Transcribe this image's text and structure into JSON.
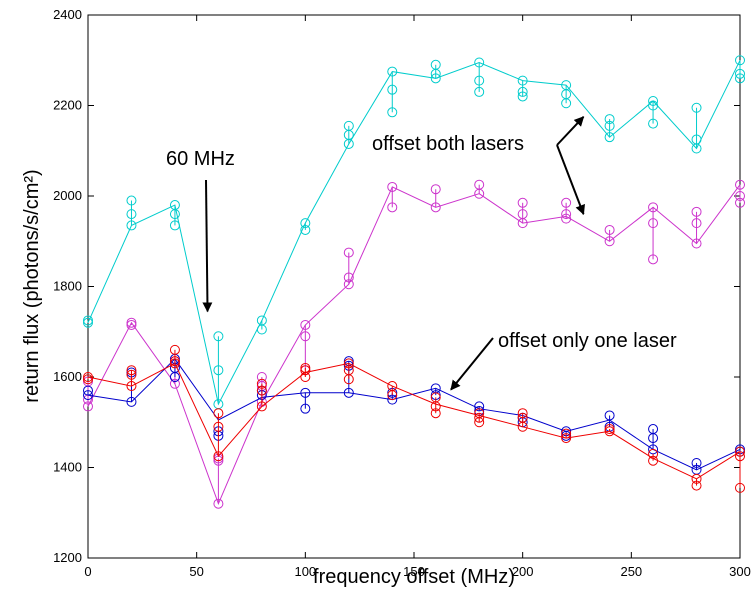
{
  "chart_data": {
    "type": "scatter",
    "title": "",
    "xlabel": "frequency offset (MHz)",
    "ylabel": "return flux (photons/s/cm²)",
    "xlim": [
      0,
      300
    ],
    "ylim": [
      1200,
      2400
    ],
    "xticks": [
      0,
      50,
      100,
      150,
      200,
      250,
      300
    ],
    "yticks": [
      1200,
      1400,
      1600,
      1800,
      2000,
      2200,
      2400
    ],
    "grid": false,
    "legend": "none",
    "series": [
      {
        "color": "#00cccc",
        "marker": "circle",
        "points": [
          [
            0,
            1725
          ],
          [
            0,
            1720
          ],
          [
            20,
            1990
          ],
          [
            20,
            1960
          ],
          [
            20,
            1935
          ],
          [
            40,
            1980
          ],
          [
            40,
            1960
          ],
          [
            40,
            1935
          ],
          [
            60,
            1690
          ],
          [
            60,
            1615
          ],
          [
            60,
            1540
          ],
          [
            80,
            1725
          ],
          [
            80,
            1705
          ],
          [
            100,
            1940
          ],
          [
            100,
            1925
          ],
          [
            120,
            2155
          ],
          [
            120,
            2135
          ],
          [
            120,
            2115
          ],
          [
            140,
            2275
          ],
          [
            140,
            2235
          ],
          [
            140,
            2185
          ],
          [
            160,
            2290
          ],
          [
            160,
            2270
          ],
          [
            160,
            2260
          ],
          [
            180,
            2295
          ],
          [
            180,
            2255
          ],
          [
            180,
            2230
          ],
          [
            200,
            2255
          ],
          [
            200,
            2230
          ],
          [
            200,
            2220
          ],
          [
            220,
            2245
          ],
          [
            220,
            2225
          ],
          [
            220,
            2205
          ],
          [
            240,
            2170
          ],
          [
            240,
            2155
          ],
          [
            240,
            2130
          ],
          [
            260,
            2210
          ],
          [
            260,
            2200
          ],
          [
            260,
            2160
          ],
          [
            280,
            2195
          ],
          [
            280,
            2125
          ],
          [
            280,
            2105
          ],
          [
            300,
            2300
          ],
          [
            300,
            2270
          ],
          [
            300,
            2260
          ]
        ],
        "line": [
          [
            0,
            1720
          ],
          [
            20,
            1935
          ],
          [
            40,
            1980
          ],
          [
            60,
            1540
          ],
          [
            80,
            1725
          ],
          [
            100,
            1940
          ],
          [
            120,
            2115
          ],
          [
            140,
            2275
          ],
          [
            160,
            2260
          ],
          [
            180,
            2295
          ],
          [
            200,
            2255
          ],
          [
            220,
            2245
          ],
          [
            240,
            2130
          ],
          [
            260,
            2210
          ],
          [
            280,
            2105
          ],
          [
            300,
            2300
          ]
        ]
      },
      {
        "color": "#cc33cc",
        "marker": "circle",
        "points": [
          [
            0,
            1590
          ],
          [
            0,
            1550
          ],
          [
            0,
            1535
          ],
          [
            20,
            1720
          ],
          [
            20,
            1715
          ],
          [
            40,
            1635
          ],
          [
            40,
            1600
          ],
          [
            40,
            1585
          ],
          [
            60,
            1420
          ],
          [
            60,
            1415
          ],
          [
            60,
            1320
          ],
          [
            80,
            1600
          ],
          [
            80,
            1580
          ],
          [
            80,
            1545
          ],
          [
            100,
            1715
          ],
          [
            100,
            1690
          ],
          [
            100,
            1615
          ],
          [
            120,
            1875
          ],
          [
            120,
            1820
          ],
          [
            120,
            1805
          ],
          [
            140,
            2020
          ],
          [
            140,
            1975
          ],
          [
            160,
            2015
          ],
          [
            160,
            1975
          ],
          [
            180,
            2025
          ],
          [
            180,
            2005
          ],
          [
            200,
            1985
          ],
          [
            200,
            1960
          ],
          [
            200,
            1940
          ],
          [
            220,
            1985
          ],
          [
            220,
            1960
          ],
          [
            220,
            1950
          ],
          [
            240,
            1925
          ],
          [
            240,
            1900
          ],
          [
            260,
            1975
          ],
          [
            260,
            1940
          ],
          [
            260,
            1860
          ],
          [
            280,
            1965
          ],
          [
            280,
            1940
          ],
          [
            280,
            1895
          ],
          [
            300,
            2025
          ],
          [
            300,
            2000
          ],
          [
            300,
            1985
          ]
        ],
        "line": [
          [
            0,
            1535
          ],
          [
            20,
            1720
          ],
          [
            40,
            1585
          ],
          [
            60,
            1320
          ],
          [
            80,
            1545
          ],
          [
            100,
            1715
          ],
          [
            120,
            1805
          ],
          [
            140,
            2020
          ],
          [
            160,
            1975
          ],
          [
            180,
            2005
          ],
          [
            200,
            1940
          ],
          [
            220,
            1955
          ],
          [
            240,
            1900
          ],
          [
            260,
            1975
          ],
          [
            280,
            1895
          ],
          [
            300,
            2025
          ]
        ]
      },
      {
        "color": "#0000cc",
        "marker": "circle",
        "points": [
          [
            0,
            1570
          ],
          [
            0,
            1560
          ],
          [
            20,
            1610
          ],
          [
            20,
            1545
          ],
          [
            40,
            1640
          ],
          [
            40,
            1620
          ],
          [
            40,
            1600
          ],
          [
            60,
            1480
          ],
          [
            60,
            1470
          ],
          [
            80,
            1570
          ],
          [
            80,
            1560
          ],
          [
            100,
            1565
          ],
          [
            100,
            1530
          ],
          [
            120,
            1635
          ],
          [
            120,
            1625
          ],
          [
            120,
            1565
          ],
          [
            140,
            1565
          ],
          [
            140,
            1550
          ],
          [
            160,
            1575
          ],
          [
            160,
            1560
          ],
          [
            180,
            1535
          ],
          [
            180,
            1525
          ],
          [
            200,
            1510
          ],
          [
            200,
            1500
          ],
          [
            220,
            1480
          ],
          [
            220,
            1470
          ],
          [
            240,
            1515
          ],
          [
            240,
            1490
          ],
          [
            260,
            1485
          ],
          [
            260,
            1465
          ],
          [
            260,
            1440
          ],
          [
            280,
            1410
          ],
          [
            280,
            1395
          ],
          [
            300,
            1440
          ],
          [
            300,
            1435
          ]
        ],
        "line": [
          [
            0,
            1560
          ],
          [
            20,
            1545
          ],
          [
            40,
            1640
          ],
          [
            60,
            1505
          ],
          [
            80,
            1555
          ],
          [
            100,
            1565
          ],
          [
            120,
            1565
          ],
          [
            140,
            1550
          ],
          [
            160,
            1575
          ],
          [
            180,
            1530
          ],
          [
            200,
            1515
          ],
          [
            220,
            1480
          ],
          [
            240,
            1505
          ],
          [
            260,
            1440
          ],
          [
            280,
            1395
          ],
          [
            300,
            1440
          ]
        ]
      },
      {
        "color": "#ee0000",
        "marker": "circle",
        "points": [
          [
            0,
            1600
          ],
          [
            0,
            1595
          ],
          [
            20,
            1615
          ],
          [
            20,
            1605
          ],
          [
            20,
            1580
          ],
          [
            40,
            1660
          ],
          [
            40,
            1635
          ],
          [
            40,
            1630
          ],
          [
            60,
            1520
          ],
          [
            60,
            1490
          ],
          [
            60,
            1425
          ],
          [
            80,
            1585
          ],
          [
            80,
            1570
          ],
          [
            80,
            1535
          ],
          [
            100,
            1620
          ],
          [
            100,
            1615
          ],
          [
            100,
            1600
          ],
          [
            120,
            1630
          ],
          [
            120,
            1615
          ],
          [
            120,
            1595
          ],
          [
            140,
            1580
          ],
          [
            140,
            1560
          ],
          [
            160,
            1555
          ],
          [
            160,
            1535
          ],
          [
            160,
            1520
          ],
          [
            180,
            1520
          ],
          [
            180,
            1510
          ],
          [
            180,
            1500
          ],
          [
            200,
            1520
          ],
          [
            200,
            1510
          ],
          [
            200,
            1490
          ],
          [
            220,
            1475
          ],
          [
            220,
            1465
          ],
          [
            240,
            1485
          ],
          [
            240,
            1480
          ],
          [
            260,
            1430
          ],
          [
            260,
            1415
          ],
          [
            280,
            1375
          ],
          [
            280,
            1360
          ],
          [
            300,
            1435
          ],
          [
            300,
            1425
          ],
          [
            300,
            1355
          ]
        ],
        "line": [
          [
            0,
            1600
          ],
          [
            20,
            1580
          ],
          [
            40,
            1630
          ],
          [
            60,
            1425
          ],
          [
            80,
            1535
          ],
          [
            100,
            1610
          ],
          [
            120,
            1630
          ],
          [
            140,
            1580
          ],
          [
            160,
            1540
          ],
          [
            180,
            1515
          ],
          [
            200,
            1490
          ],
          [
            220,
            1465
          ],
          [
            240,
            1480
          ],
          [
            260,
            1420
          ],
          [
            280,
            1375
          ],
          [
            300,
            1435
          ]
        ]
      }
    ],
    "annotations": [
      {
        "text": "60 MHz",
        "arrow_to": [
          55,
          1745
        ]
      },
      {
        "text": "offset both lasers",
        "arrows_to": [
          [
            228,
            2175
          ],
          [
            228,
            1960
          ]
        ]
      },
      {
        "text": "offset only one laser",
        "arrow_to": [
          167,
          1572
        ]
      }
    ]
  }
}
